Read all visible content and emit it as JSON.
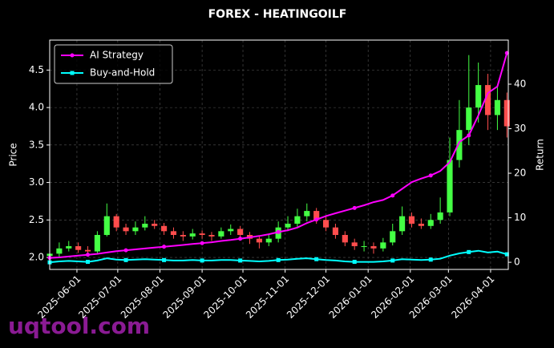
{
  "chart_data": {
    "type": "candlestick",
    "title": "FOREX - HEATINGOILF",
    "ylabel": "Price",
    "y2label": "Return",
    "watermark": "uqtool.com",
    "x": [
      "2025-05-12",
      "2025-05-19",
      "2025-05-26",
      "2025-06-02",
      "2025-06-09",
      "2025-06-16",
      "2025-06-23",
      "2025-06-30",
      "2025-07-07",
      "2025-07-14",
      "2025-07-21",
      "2025-07-28",
      "2025-08-04",
      "2025-08-11",
      "2025-08-18",
      "2025-08-25",
      "2025-09-01",
      "2025-09-08",
      "2025-09-15",
      "2025-09-22",
      "2025-09-29",
      "2025-10-06",
      "2025-10-13",
      "2025-10-20",
      "2025-10-27",
      "2025-11-03",
      "2025-11-10",
      "2025-11-17",
      "2025-11-24",
      "2025-12-01",
      "2025-12-08",
      "2025-12-15",
      "2025-12-22",
      "2025-12-29",
      "2026-01-05",
      "2026-01-12",
      "2026-01-19",
      "2026-01-26",
      "2026-02-02",
      "2026-02-09",
      "2026-02-16",
      "2026-02-23",
      "2026-03-02",
      "2026-03-09",
      "2026-03-16",
      "2026-03-23",
      "2026-03-30",
      "2026-04-06",
      "2026-04-13"
    ],
    "open": [
      2.02,
      2.05,
      2.12,
      2.15,
      2.1,
      2.08,
      2.3,
      2.55,
      2.4,
      2.35,
      2.4,
      2.45,
      2.42,
      2.35,
      2.3,
      2.28,
      2.32,
      2.3,
      2.28,
      2.35,
      2.38,
      2.3,
      2.25,
      2.2,
      2.25,
      2.4,
      2.45,
      2.55,
      2.62,
      2.5,
      2.4,
      2.3,
      2.2,
      2.15,
      2.15,
      2.12,
      2.2,
      2.35,
      2.55,
      2.45,
      2.42,
      2.5,
      2.6,
      3.3,
      3.7,
      4.0,
      4.3,
      3.9,
      4.1
    ],
    "high": [
      2.12,
      2.2,
      2.22,
      2.2,
      2.15,
      2.35,
      2.72,
      2.58,
      2.45,
      2.48,
      2.55,
      2.5,
      2.46,
      2.4,
      2.35,
      2.38,
      2.36,
      2.34,
      2.4,
      2.44,
      2.42,
      2.34,
      2.28,
      2.3,
      2.48,
      2.55,
      2.65,
      2.72,
      2.66,
      2.55,
      2.45,
      2.35,
      2.25,
      2.22,
      2.2,
      2.26,
      2.45,
      2.68,
      2.6,
      2.52,
      2.58,
      2.8,
      3.6,
      4.1,
      4.7,
      4.6,
      4.45,
      4.3,
      4.2
    ],
    "low": [
      1.97,
      2.0,
      2.08,
      2.06,
      2.03,
      2.05,
      2.28,
      2.35,
      2.3,
      2.3,
      2.36,
      2.38,
      2.3,
      2.25,
      2.22,
      2.24,
      2.25,
      2.22,
      2.25,
      2.3,
      2.24,
      2.18,
      2.12,
      2.15,
      2.2,
      2.35,
      2.4,
      2.48,
      2.45,
      2.35,
      2.25,
      2.15,
      2.1,
      2.08,
      2.05,
      2.08,
      2.16,
      2.3,
      2.4,
      2.38,
      2.38,
      2.45,
      2.55,
      3.2,
      3.5,
      3.8,
      3.7,
      3.7,
      3.6
    ],
    "close": [
      2.05,
      2.12,
      2.15,
      2.1,
      2.08,
      2.3,
      2.55,
      2.4,
      2.35,
      2.4,
      2.45,
      2.42,
      2.35,
      2.3,
      2.28,
      2.32,
      2.3,
      2.28,
      2.35,
      2.38,
      2.3,
      2.25,
      2.2,
      2.25,
      2.4,
      2.45,
      2.55,
      2.62,
      2.5,
      2.4,
      2.3,
      2.2,
      2.15,
      2.15,
      2.12,
      2.2,
      2.35,
      2.55,
      2.45,
      2.42,
      2.5,
      2.6,
      3.3,
      3.7,
      4.0,
      4.3,
      3.9,
      4.1,
      3.75
    ],
    "up_color": "#44ff44",
    "down_color": "#ff4d4d",
    "series": [
      {
        "name": "AI Strategy",
        "color": "#ff00ff",
        "axis": "y2",
        "values": [
          1.0,
          1.1,
          1.3,
          1.5,
          1.7,
          1.9,
          2.2,
          2.5,
          2.7,
          2.9,
          3.1,
          3.3,
          3.5,
          3.7,
          3.9,
          4.1,
          4.3,
          4.5,
          4.8,
          5.0,
          5.3,
          5.6,
          5.9,
          6.3,
          6.8,
          7.2,
          7.8,
          8.8,
          9.6,
          10.4,
          11.0,
          11.6,
          12.2,
          12.8,
          13.5,
          14.0,
          15.0,
          16.5,
          18.0,
          18.8,
          19.5,
          20.5,
          22.5,
          27.0,
          28.5,
          33.0,
          38.0,
          39.5,
          47.0
        ]
      },
      {
        "name": "Buy-and-Hold",
        "color": "#00ffff",
        "axis": "y2",
        "values": [
          0.0,
          0.2,
          0.3,
          0.2,
          0.1,
          0.4,
          0.9,
          0.6,
          0.5,
          0.6,
          0.7,
          0.6,
          0.5,
          0.4,
          0.4,
          0.5,
          0.4,
          0.4,
          0.5,
          0.5,
          0.4,
          0.3,
          0.2,
          0.3,
          0.5,
          0.6,
          0.8,
          0.9,
          0.7,
          0.5,
          0.4,
          0.2,
          0.1,
          0.1,
          0.1,
          0.2,
          0.4,
          0.7,
          0.6,
          0.5,
          0.6,
          0.8,
          1.5,
          2.0,
          2.3,
          2.6,
          2.2,
          2.4,
          1.8
        ]
      }
    ],
    "xlim": [
      "2025-05-12",
      "2026-04-14"
    ],
    "xticks": [
      "2025-06-01",
      "2025-07-01",
      "2025-08-01",
      "2025-09-01",
      "2025-10-01",
      "2025-11-01",
      "2025-12-01",
      "2026-01-01",
      "2026-02-01",
      "2026-03-01",
      "2026-04-01"
    ],
    "ylim": [
      1.84,
      4.9
    ],
    "yticks": [
      {
        "value": 2,
        "label": "2.0"
      },
      2.5,
      {
        "value": 3,
        "label": "3.0"
      },
      3.5,
      {
        "value": 4,
        "label": "4.0"
      },
      4.5
    ],
    "y2lim": [
      -1.6,
      49.9
    ],
    "y2ticks": [
      0,
      10,
      20,
      30,
      40
    ],
    "grid": true,
    "legend": "upper left"
  }
}
